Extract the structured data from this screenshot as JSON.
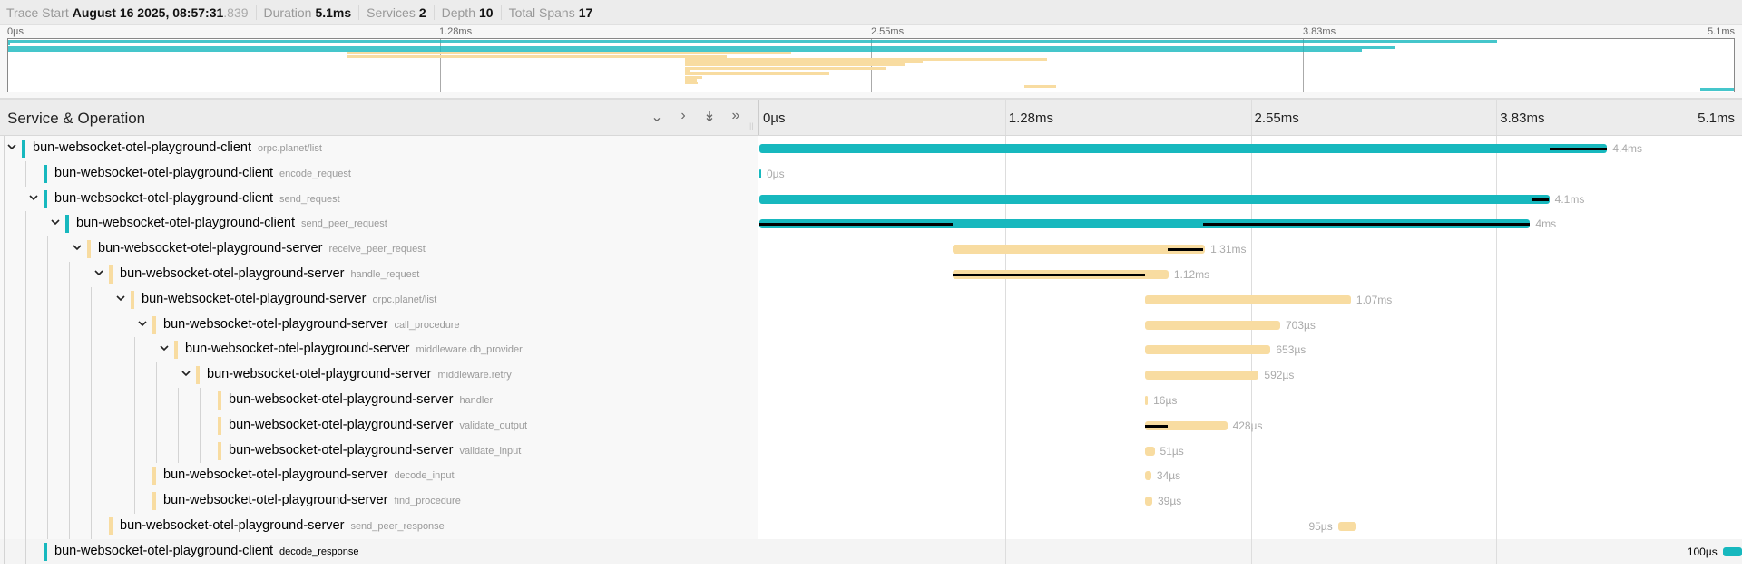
{
  "header": {
    "trace_start_label": "Trace Start",
    "trace_start_value": "August 16 2025, 08:57:31",
    "trace_start_ms": ".839",
    "duration_label": "Duration",
    "duration_value": "5.1ms",
    "services_label": "Services",
    "services_value": "2",
    "depth_label": "Depth",
    "depth_value": "10",
    "spans_label": "Total Spans",
    "spans_value": "17"
  },
  "ticks": [
    "0µs",
    "1.28ms",
    "2.55ms",
    "3.83ms",
    "5.1ms"
  ],
  "total_duration_us": 5100,
  "colors": {
    "client": "#17b8be",
    "server": "#f8dca1",
    "critical": "#000000"
  },
  "column_header": {
    "title": "Service & Operation",
    "icons": [
      "chevron-down-icon",
      "chevron-right-icon",
      "double-chevron-down-icon",
      "double-chevron-right-icon"
    ]
  },
  "spans": [
    {
      "service": "bun-websocket-otel-playground-client",
      "operation": "orpc.planet/list",
      "kind": "client",
      "depth": 0,
      "children": true,
      "start_us": 0,
      "duration_us": 4400,
      "duration": "4.4ms",
      "critical": [
        [
          4104,
          4400
        ]
      ]
    },
    {
      "service": "bun-websocket-otel-playground-client",
      "operation": "encode_request",
      "kind": "client",
      "depth": 1,
      "children": false,
      "start_us": 0,
      "duration_us": 0,
      "duration": "0µs",
      "critical": []
    },
    {
      "service": "bun-websocket-otel-playground-client",
      "operation": "send_request",
      "kind": "client",
      "depth": 1,
      "children": true,
      "start_us": 0,
      "duration_us": 4100,
      "duration": "4.1ms",
      "critical": [
        [
          4006,
          4098
        ]
      ]
    },
    {
      "service": "bun-websocket-otel-playground-client",
      "operation": "send_peer_request",
      "kind": "client",
      "depth": 2,
      "children": true,
      "start_us": 0,
      "duration_us": 4000,
      "duration": "4ms",
      "critical": [
        [
          0,
          1003
        ],
        [
          2305,
          4000
        ]
      ]
    },
    {
      "service": "bun-websocket-otel-playground-server",
      "operation": "receive_peer_request",
      "kind": "server",
      "depth": 3,
      "children": true,
      "start_us": 1003,
      "duration_us": 1310,
      "duration": "1.31ms",
      "critical": [
        [
          2120,
          2305
        ]
      ]
    },
    {
      "service": "bun-websocket-otel-playground-server",
      "operation": "handle_request",
      "kind": "server",
      "depth": 4,
      "children": true,
      "start_us": 1003,
      "duration_us": 1120,
      "duration": "1.12ms",
      "critical": [
        [
          1003,
          2000
        ]
      ]
    },
    {
      "service": "bun-websocket-otel-playground-server",
      "operation": "orpc.planet/list",
      "kind": "server",
      "depth": 5,
      "children": true,
      "start_us": 2000,
      "duration_us": 1070,
      "duration": "1.07ms",
      "critical": []
    },
    {
      "service": "bun-websocket-otel-playground-server",
      "operation": "call_procedure",
      "kind": "server",
      "depth": 6,
      "children": true,
      "start_us": 2000,
      "duration_us": 703,
      "duration": "703µs",
      "critical": []
    },
    {
      "service": "bun-websocket-otel-playground-server",
      "operation": "middleware.db_provider",
      "kind": "server",
      "depth": 7,
      "children": true,
      "start_us": 2000,
      "duration_us": 653,
      "duration": "653µs",
      "critical": []
    },
    {
      "service": "bun-websocket-otel-playground-server",
      "operation": "middleware.retry",
      "kind": "server",
      "depth": 8,
      "children": true,
      "start_us": 2000,
      "duration_us": 592,
      "duration": "592µs",
      "critical": []
    },
    {
      "service": "bun-websocket-otel-playground-server",
      "operation": "handler",
      "kind": "server",
      "depth": 9,
      "children": false,
      "start_us": 2000,
      "duration_us": 16,
      "duration": "16µs",
      "critical": []
    },
    {
      "service": "bun-websocket-otel-playground-server",
      "operation": "validate_output",
      "kind": "server",
      "depth": 9,
      "children": false,
      "start_us": 2000,
      "duration_us": 428,
      "duration": "428µs",
      "critical": [
        [
          2000,
          2121
        ]
      ]
    },
    {
      "service": "bun-websocket-otel-playground-server",
      "operation": "validate_input",
      "kind": "server",
      "depth": 9,
      "children": false,
      "start_us": 2000,
      "duration_us": 51,
      "duration": "51µs",
      "critical": []
    },
    {
      "service": "bun-websocket-otel-playground-server",
      "operation": "decode_input",
      "kind": "server",
      "depth": 6,
      "children": false,
      "start_us": 2000,
      "duration_us": 34,
      "duration": "34µs",
      "critical": []
    },
    {
      "service": "bun-websocket-otel-playground-server",
      "operation": "find_procedure",
      "kind": "server",
      "depth": 6,
      "children": false,
      "start_us": 2000,
      "duration_us": 39,
      "duration": "39µs",
      "critical": []
    },
    {
      "service": "bun-websocket-otel-playground-server",
      "operation": "send_peer_response",
      "kind": "server",
      "depth": 4,
      "children": false,
      "start_us": 3003,
      "duration_us": 95,
      "duration": "95µs",
      "critical": []
    },
    {
      "service": "bun-websocket-otel-playground-client",
      "operation": "decode_response",
      "kind": "client",
      "depth": 1,
      "children": false,
      "start_us": 5000,
      "duration_us": 100,
      "duration": "100µs",
      "critical": [],
      "hovered": true
    }
  ]
}
